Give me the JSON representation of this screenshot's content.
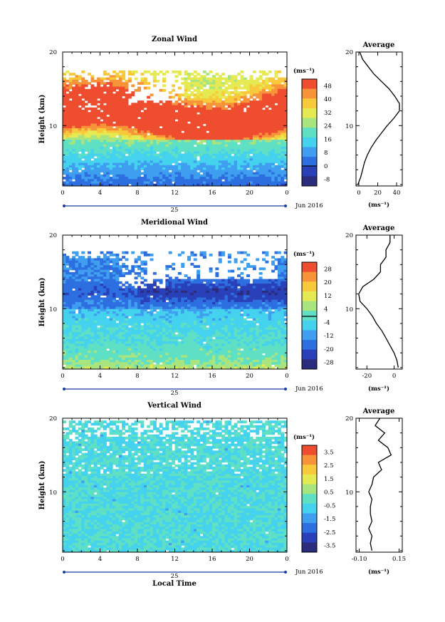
{
  "chart_data": [
    {
      "type": "heatmap",
      "title": "Zonal Wind",
      "ylabel": "Height (km)",
      "x_ticks": [
        "0",
        "4",
        "8",
        "12",
        "16",
        "20",
        "0"
      ],
      "y_ticks": [
        "10",
        "20"
      ],
      "xlim": [
        0,
        24
      ],
      "ylim": [
        1.8,
        20
      ],
      "date_day": "25",
      "date_month": "Jun 2016",
      "colorbar": {
        "unit": "(ms⁻¹)",
        "ticks": [
          "48",
          "40",
          "32",
          "24",
          "16",
          "8",
          "0",
          "-8"
        ],
        "range": [
          -12,
          52
        ]
      },
      "average": {
        "title": "Average",
        "x_ticks": [
          "0",
          "20",
          "40"
        ],
        "xlim": [
          -3,
          46
        ],
        "xlabel": "(ms⁻¹)",
        "height": [
          2,
          3,
          4,
          5,
          6,
          7,
          8,
          9,
          10,
          11,
          12,
          13,
          14,
          15,
          16,
          17,
          18,
          19,
          20
        ],
        "value": [
          -1,
          2,
          4,
          6,
          9,
          13,
          18,
          24,
          30,
          37,
          43,
          43,
          38,
          32,
          24,
          16,
          10,
          4,
          1
        ]
      }
    },
    {
      "type": "heatmap",
      "title": "Meridional Wind",
      "ylabel": "Height (km)",
      "x_ticks": [
        "0",
        "4",
        "8",
        "12",
        "16",
        "20",
        "0"
      ],
      "y_ticks": [
        "10",
        "20"
      ],
      "xlim": [
        0,
        24
      ],
      "ylim": [
        1.8,
        20
      ],
      "date_day": "25",
      "date_month": "Jun 2016",
      "colorbar": {
        "unit": "(ms⁻¹)",
        "ticks": [
          "28",
          "20",
          "12",
          "4",
          "-4",
          "-12",
          "-20",
          "-28"
        ],
        "range": [
          -32,
          32
        ]
      },
      "average": {
        "title": "Average",
        "x_ticks": [
          "-20",
          "0"
        ],
        "xlim": [
          -28,
          6
        ],
        "xlabel": "(ms⁻¹)",
        "height": [
          2,
          3,
          4,
          5,
          6,
          7,
          8,
          9,
          10,
          11,
          12,
          13,
          14,
          15,
          16,
          17,
          18,
          19,
          20
        ],
        "value": [
          3,
          2,
          0,
          -3,
          -6,
          -9,
          -13,
          -16,
          -20,
          -25,
          -26,
          -23,
          -15,
          -10,
          -10,
          -6,
          -6,
          -3,
          -3
        ]
      }
    },
    {
      "type": "heatmap",
      "title": "Vertical Wind",
      "ylabel": "Height (km)",
      "xlabel": "Local Time",
      "x_ticks": [
        "0",
        "4",
        "8",
        "12",
        "16",
        "20",
        "0"
      ],
      "y_ticks": [
        "10",
        "20"
      ],
      "xlim": [
        0,
        24
      ],
      "ylim": [
        1.8,
        20
      ],
      "date_day": "25",
      "date_month": "Jun 2016",
      "colorbar": {
        "unit": "(ms⁻¹)",
        "ticks": [
          "3.5",
          "2.5",
          "1.5",
          "0.5",
          "-0.5",
          "-1.5",
          "-2.5",
          "-3.5"
        ],
        "range": [
          -4,
          4
        ]
      },
      "average": {
        "title": "Average",
        "x_ticks": [
          "-0.10",
          "0.15"
        ],
        "xlim": [
          -0.12,
          0.17
        ],
        "xlabel": "(ms⁻¹)",
        "height": [
          2,
          3,
          4,
          5,
          6,
          7,
          8,
          9,
          10,
          11,
          12,
          13,
          14,
          15,
          16,
          17,
          18,
          19,
          20
        ],
        "value": [
          -0.02,
          -0.03,
          -0.02,
          -0.04,
          -0.02,
          -0.03,
          -0.03,
          -0.02,
          -0.04,
          -0.02,
          -0.01,
          0.04,
          0.02,
          0.1,
          0.08,
          0.02,
          0.06,
          0.0,
          0.03
        ]
      }
    }
  ]
}
